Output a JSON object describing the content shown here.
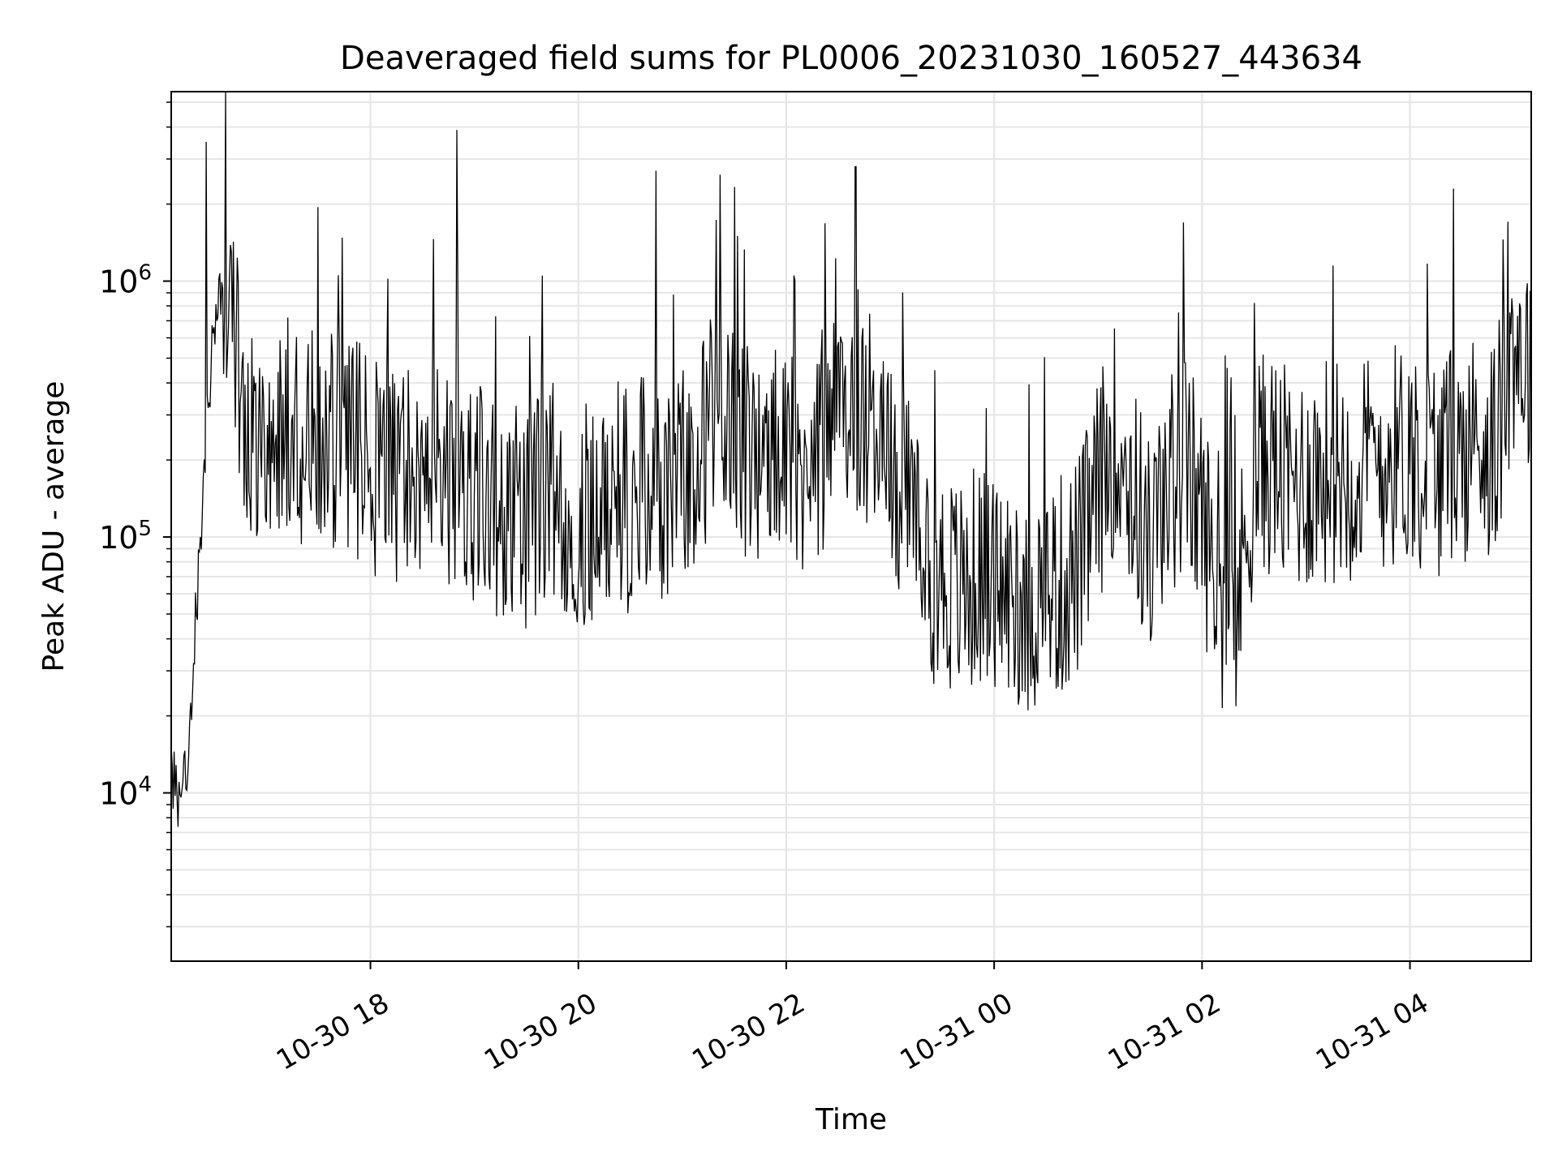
{
  "chart_data": {
    "type": "line",
    "title": "Deaveraged field sums for PL0006_20231030_160527_443634",
    "xlabel": "Time",
    "ylabel": "Peak ADU - average",
    "yscale": "log",
    "xlim": [
      "2023-10-30 16:05",
      "2023-10-31 05:10"
    ],
    "ylim": [
      2200,
      5500000
    ],
    "grid": true,
    "legend": "none",
    "x_ticks": [
      {
        "t": "2023-10-30 18:00",
        "label": "10-30 18"
      },
      {
        "t": "2023-10-30 20:00",
        "label": "10-30 20"
      },
      {
        "t": "2023-10-30 22:00",
        "label": "10-30 22"
      },
      {
        "t": "2023-10-31 00:00",
        "label": "10-31 00"
      },
      {
        "t": "2023-10-31 02:00",
        "label": "10-31 02"
      },
      {
        "t": "2023-10-31 04:00",
        "label": "10-31 04"
      }
    ],
    "y_ticks": [
      {
        "v": 10000,
        "base": "10",
        "exp": "4"
      },
      {
        "v": 100000,
        "base": "10",
        "exp": "5"
      },
      {
        "v": 1000000,
        "base": "10",
        "exp": "6"
      }
    ],
    "series": [
      {
        "color": "#000000",
        "x": [
          "2023-10-30 16:05",
          "2023-10-30 16:10",
          "2023-10-30 16:15",
          "2023-10-30 16:20",
          "2023-10-30 16:25",
          "2023-10-30 16:30",
          "2023-10-30 16:35",
          "2023-10-30 16:40",
          "2023-10-30 16:45",
          "2023-10-30 16:50",
          "2023-10-30 17:00",
          "2023-10-30 17:10",
          "2023-10-30 17:20",
          "2023-10-30 17:30",
          "2023-10-30 17:40",
          "2023-10-30 17:50",
          "2023-10-30 18:00",
          "2023-10-30 18:10",
          "2023-10-30 18:20",
          "2023-10-30 18:30",
          "2023-10-30 18:40",
          "2023-10-30 18:50",
          "2023-10-30 19:00",
          "2023-10-30 19:10",
          "2023-10-30 19:20",
          "2023-10-30 19:30",
          "2023-10-30 19:40",
          "2023-10-30 19:50",
          "2023-10-30 20:00",
          "2023-10-30 20:10",
          "2023-10-30 20:20",
          "2023-10-30 20:30",
          "2023-10-30 20:40",
          "2023-10-30 20:50",
          "2023-10-30 21:00",
          "2023-10-30 21:10",
          "2023-10-30 21:20",
          "2023-10-30 21:30",
          "2023-10-30 21:40",
          "2023-10-30 21:50",
          "2023-10-30 22:00",
          "2023-10-30 22:10",
          "2023-10-30 22:20",
          "2023-10-30 22:30",
          "2023-10-30 22:40",
          "2023-10-30 22:50",
          "2023-10-30 23:00",
          "2023-10-30 23:10",
          "2023-10-30 23:20",
          "2023-10-30 23:30",
          "2023-10-30 23:40",
          "2023-10-30 23:50",
          "2023-10-31 00:00",
          "2023-10-31 00:10",
          "2023-10-31 00:20",
          "2023-10-31 00:30",
          "2023-10-31 00:40",
          "2023-10-31 00:50",
          "2023-10-31 01:00",
          "2023-10-31 01:10",
          "2023-10-31 01:20",
          "2023-10-31 01:30",
          "2023-10-31 01:40",
          "2023-10-31 01:50",
          "2023-10-31 02:00",
          "2023-10-31 02:10",
          "2023-10-31 02:20",
          "2023-10-31 02:30",
          "2023-10-31 02:40",
          "2023-10-31 02:50",
          "2023-10-31 03:00",
          "2023-10-31 03:10",
          "2023-10-31 03:20",
          "2023-10-31 03:30",
          "2023-10-31 03:40",
          "2023-10-31 03:50",
          "2023-10-31 04:00",
          "2023-10-31 04:10",
          "2023-10-31 04:20",
          "2023-10-31 04:30",
          "2023-10-31 04:40",
          "2023-10-31 04:50",
          "2023-10-31 05:00",
          "2023-10-31 05:10"
        ],
        "y": [
          12000,
          9000,
          15000,
          60000,
          250000,
          700000,
          1100000,
          900000,
          400000,
          300000,
          260000,
          280000,
          250000,
          240000,
          230000,
          210000,
          200000,
          190000,
          180000,
          170000,
          200000,
          160000,
          150000,
          140000,
          130000,
          120000,
          140000,
          150000,
          110000,
          130000,
          150000,
          140000,
          160000,
          150000,
          180000,
          200000,
          350000,
          250000,
          200000,
          220000,
          180000,
          200000,
          230000,
          280000,
          350000,
          300000,
          180000,
          140000,
          80000,
          70000,
          60000,
          70000,
          65000,
          60000,
          55000,
          60000,
          65000,
          80000,
          150000,
          250000,
          150000,
          90000,
          150000,
          200000,
          120000,
          60000,
          50000,
          180000,
          200000,
          160000,
          170000,
          180000,
          190000,
          180000,
          200000,
          210000,
          220000,
          200000,
          190000,
          210000,
          250000,
          220000,
          600000,
          450000
        ]
      }
    ],
    "peak_spikes": [
      {
        "t": "2023-10-30 16:25",
        "v": 3500000
      },
      {
        "t": "2023-10-30 18:50",
        "v": 3900000
      },
      {
        "t": "2023-10-30 20:45",
        "v": 2700000
      },
      {
        "t": "2023-10-30 22:40",
        "v": 2800000
      },
      {
        "t": "2023-10-31 04:25",
        "v": 2300000
      }
    ]
  }
}
